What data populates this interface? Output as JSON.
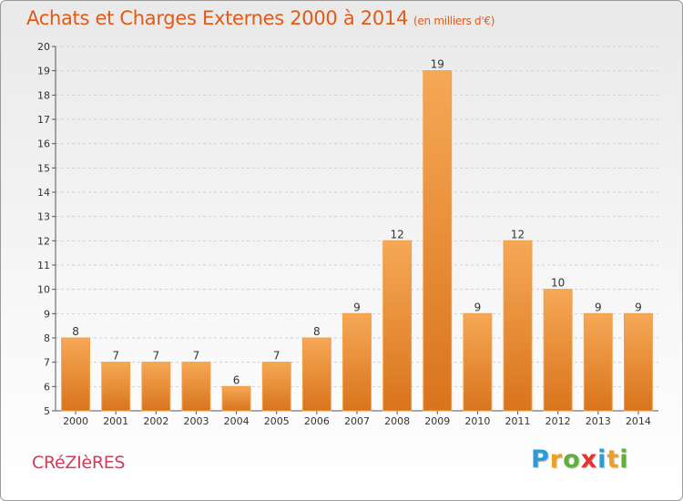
{
  "header": {
    "title": "Achats et Charges Externes 2000 à 2014",
    "unit": "(en milliers d'€)"
  },
  "footer": {
    "commune": "CRéZIèRES",
    "logo_letters": [
      "P",
      "r",
      "o",
      "x",
      "i",
      "t",
      "i"
    ]
  },
  "colors": {
    "bar_top": "#f6a856",
    "bar_bottom": "#d9741c",
    "bar_edge": "#f0a04a",
    "title": "#e05a18",
    "commune": "#d63a56",
    "grid": "#d0d0d0"
  },
  "chart_data": {
    "type": "bar",
    "title": "Achats et Charges Externes 2000 à 2014",
    "subtitle": "(en milliers d'€)",
    "xlabel": "",
    "ylabel": "",
    "categories": [
      "2000",
      "2001",
      "2002",
      "2003",
      "2004",
      "2005",
      "2006",
      "2007",
      "2008",
      "2009",
      "2010",
      "2011",
      "2012",
      "2013",
      "2014"
    ],
    "values": [
      8,
      7,
      7,
      7,
      6,
      7,
      8,
      9,
      12,
      19,
      9,
      12,
      10,
      9,
      9
    ],
    "ylim": [
      5,
      20
    ],
    "yticks": [
      5,
      6,
      7,
      8,
      9,
      10,
      11,
      12,
      13,
      14,
      15,
      16,
      17,
      18,
      19,
      20
    ],
    "grid": true,
    "data_labels": true
  }
}
